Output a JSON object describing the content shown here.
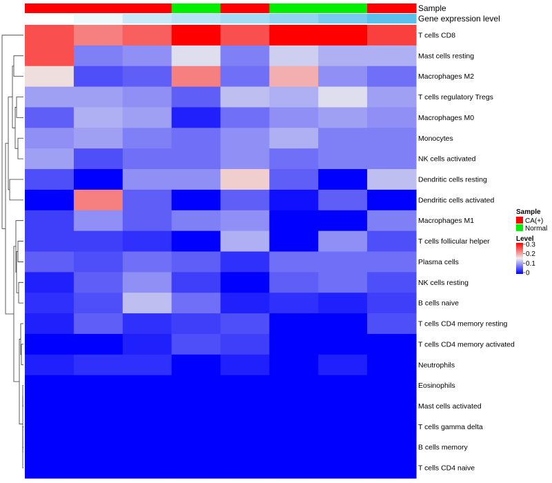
{
  "chart_data": {
    "type": "heatmap",
    "title": "",
    "annotation_tracks": [
      {
        "name": "Sample",
        "values": [
          "CA(+)",
          "CA(+)",
          "CA(+)",
          "Normal",
          "CA(+)",
          "Normal",
          "Normal",
          "CA(+)"
        ]
      },
      {
        "name": "Gene expression level",
        "values": [
          0.0,
          0.01,
          0.03,
          0.04,
          0.05,
          0.06,
          0.075,
          0.09
        ]
      }
    ],
    "rows": [
      "T cells CD8",
      "Mast cells resting",
      "Macrophages M2",
      "T cells regulatory  Tregs",
      "Macrophages M0",
      "Monocytes",
      "NK cells activated",
      "Dendritic cells resting",
      "Dendritic cells activated",
      "Macrophages M1",
      "T cells follicular helper",
      "Plasma cells",
      "NK cells resting",
      "B cells naive",
      "T cells CD4 memory resting",
      "T cells CD4 memory activated",
      "Neutrophils",
      "Eosinophils",
      "Mast cells activated",
      "T cells gamma delta",
      "B cells memory",
      "T cells CD4 naive"
    ],
    "n_columns": 8,
    "values": [
      [
        0.25,
        0.22,
        0.24,
        0.3,
        0.25,
        0.3,
        0.3,
        0.26
      ],
      [
        0.25,
        0.08,
        0.09,
        0.14,
        0.08,
        0.13,
        0.11,
        0.11
      ],
      [
        0.16,
        0.05,
        0.06,
        0.22,
        0.07,
        0.19,
        0.09,
        0.07
      ],
      [
        0.1,
        0.1,
        0.09,
        0.06,
        0.12,
        0.11,
        0.14,
        0.1
      ],
      [
        0.06,
        0.11,
        0.1,
        0.02,
        0.07,
        0.09,
        0.1,
        0.09
      ],
      [
        0.09,
        0.1,
        0.08,
        0.07,
        0.09,
        0.11,
        0.08,
        0.08
      ],
      [
        0.1,
        0.05,
        0.07,
        0.07,
        0.09,
        0.07,
        0.08,
        0.08
      ],
      [
        0.05,
        0.0,
        0.09,
        0.09,
        0.17,
        0.06,
        0.0,
        0.12
      ],
      [
        0.0,
        0.22,
        0.06,
        0.0,
        0.06,
        0.01,
        0.06,
        0.0
      ],
      [
        0.04,
        0.09,
        0.06,
        0.08,
        0.09,
        0.0,
        0.0,
        0.08
      ],
      [
        0.04,
        0.04,
        0.03,
        0.0,
        0.11,
        0.0,
        0.09,
        0.05
      ],
      [
        0.06,
        0.05,
        0.07,
        0.06,
        0.03,
        0.07,
        0.07,
        0.07
      ],
      [
        0.02,
        0.06,
        0.09,
        0.04,
        0.0,
        0.06,
        0.07,
        0.05
      ],
      [
        0.03,
        0.05,
        0.12,
        0.07,
        0.02,
        0.03,
        0.02,
        0.04
      ],
      [
        0.02,
        0.06,
        0.03,
        0.04,
        0.05,
        0.0,
        0.0,
        0.05
      ],
      [
        0.0,
        0.0,
        0.02,
        0.05,
        0.04,
        0.0,
        0.0,
        0.0
      ],
      [
        0.02,
        0.03,
        0.03,
        0.0,
        0.02,
        0.0,
        0.02,
        0.0
      ],
      [
        0.0,
        0.0,
        0.0,
        0.0,
        0.0,
        0.0,
        0.0,
        0.0
      ],
      [
        0.0,
        0.0,
        0.0,
        0.0,
        0.0,
        0.0,
        0.0,
        0.0
      ],
      [
        0.0,
        0.0,
        0.0,
        0.0,
        0.0,
        0.0,
        0.0,
        0.0
      ],
      [
        0.0,
        0.0,
        0.0,
        0.0,
        0.0,
        0.0,
        0.0,
        0.0
      ],
      [
        0.0,
        0.0,
        0.0,
        0.0,
        0.0,
        0.0,
        0.0,
        0.0
      ]
    ],
    "color_scale": {
      "min": 0,
      "mid": 0.15,
      "max": 0.3,
      "low_color": "#0000FF",
      "mid_color": "#EEEEEE",
      "high_color": "#FF0000"
    },
    "legend": {
      "sample_title": "Sample",
      "sample_entries": [
        {
          "label": "CA(+)",
          "color": "#FF0000"
        },
        {
          "label": "Normal",
          "color": "#00EE00"
        }
      ],
      "level_title": "Level",
      "level_ticks": [
        "0.3",
        "0.2",
        "0.1",
        "0"
      ],
      "placement": "right"
    },
    "annotation_colors": {
      "gene_low": "#FFFFFF",
      "gene_high": "#5BC0EB"
    },
    "row_dendrogram": true,
    "dendrogram_groups": {
      "top": [
        "Dendritic cells resting",
        "Dendritic cells activated"
      ],
      "mid": [
        "T cells CD4 memory resting",
        "T cells CD4 memory activated",
        "Neutrophils"
      ],
      "zeros": [
        "Eosinophils",
        "Mast cells activated",
        "T cells gamma delta",
        "B cells memory",
        "T cells CD4 naive"
      ]
    }
  }
}
